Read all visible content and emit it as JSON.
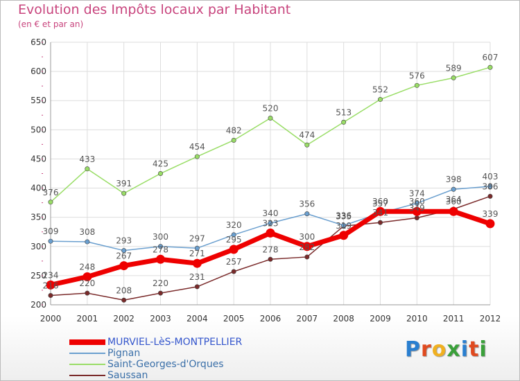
{
  "header": {
    "title": "Evolution des Impôts locaux par Habitant",
    "subtitle": "(en € et par an)"
  },
  "logo": {
    "text": "Proxiti",
    "colors": [
      "#2a7fd0",
      "#e04a1f",
      "#f0b020",
      "#3aa03a",
      "#2a7fd0",
      "#e04a1f",
      "#3aa03a"
    ]
  },
  "colors": {
    "title": "#c8447d",
    "grid": "#dddddd",
    "axis_ticks": "#c8447d"
  },
  "chart_data": {
    "type": "line",
    "title": "Evolution des Impôts locaux par Habitant",
    "subtitle": "(en € et par an)",
    "x": [
      "2000",
      "2001",
      "2002",
      "2003",
      "2004",
      "2005",
      "2006",
      "2007",
      "2008",
      "2009",
      "2010",
      "2011",
      "2012"
    ],
    "ylim": [
      200,
      650
    ],
    "yticks": [
      "200",
      "250",
      "300",
      "350",
      "400",
      "450",
      "500",
      "550",
      "600",
      "650"
    ],
    "grid": true,
    "legend_position": "bottom-left",
    "series": [
      {
        "name": "MURVIEL-LèS-MONTPELLIER",
        "color": "#ee0000",
        "values": [
          234,
          248,
          267,
          278,
          271,
          295,
          323,
          300,
          319,
          360,
          360,
          360,
          339
        ],
        "labels": [
          "234",
          "248",
          "267",
          "278",
          "271",
          "295",
          "323",
          "300",
          "319",
          "360",
          "360",
          "360",
          "339"
        ]
      },
      {
        "name": "Pignan",
        "color": "#6a9fcf",
        "values": [
          309,
          308,
          293,
          300,
          297,
          320,
          340,
          356,
          336,
          357,
          374,
          398,
          403
        ],
        "labels": [
          "309",
          "308",
          "293",
          "300",
          "297",
          "320",
          "340",
          "356",
          "336",
          "357",
          "374",
          "398",
          "403"
        ]
      },
      {
        "name": "Saint-Georges-d'Orques",
        "color": "#99dd66",
        "values": [
          376,
          433,
          391,
          425,
          454,
          482,
          520,
          474,
          513,
          552,
          576,
          589,
          607
        ],
        "labels": [
          "376",
          "433",
          "391",
          "425",
          "454",
          "482",
          "520",
          "474",
          "513",
          "552",
          "576",
          "589",
          "607"
        ]
      },
      {
        "name": "Saussan",
        "color": "#7a2a2a",
        "values": [
          216,
          220,
          208,
          220,
          231,
          257,
          278,
          282,
          335,
          341,
          349,
          364,
          386
        ],
        "labels": [
          "216",
          "220",
          "208",
          "220",
          "231",
          "257",
          "278",
          "282",
          "335",
          "341",
          "349",
          "364",
          "386"
        ]
      }
    ]
  },
  "legend": {
    "items": [
      {
        "label": "MURVIEL-LèS-MONTPELLIER",
        "color": "#ee0000"
      },
      {
        "label": "Pignan",
        "color": "#6a9fcf"
      },
      {
        "label": "Saint-Georges-d'Orques",
        "color": "#99dd66"
      },
      {
        "label": "Saussan",
        "color": "#7a2a2a"
      }
    ]
  }
}
